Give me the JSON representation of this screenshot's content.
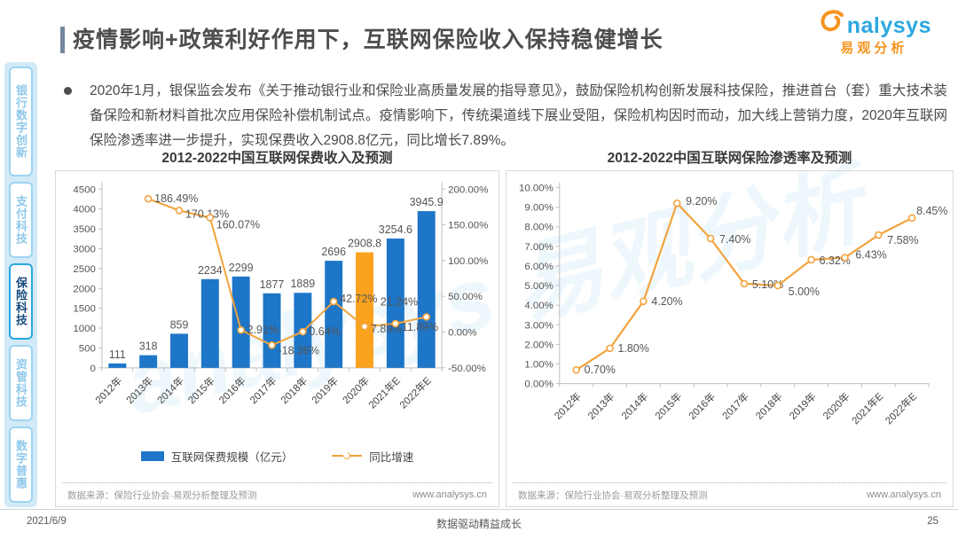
{
  "colors": {
    "blue": "#1E76C8",
    "orange": "#FAA21E",
    "line": "#F2A33C",
    "brand_blue": "#2AA8DF",
    "brand_orange": "#F7941E"
  },
  "header": {
    "title": "疫情影响+政策利好作用下，互联网保险收入保持稳健增长",
    "logo_brand": "nalysys",
    "logo_cn": "易观分析"
  },
  "bullet": "2020年1月，银保监会发布《关于推动银行业和保险业高质量发展的指导意见》，鼓励保险机构创新发展科技保险，推进首台（套）重大技术装备保险和新材料首批次应用保险补偿机制试点。疫情影响下，传统渠道线下展业受阻，保险机构因时而动，加大线上营销力度，2020年互联网保险渗透率进一步提升，实现保费收入2908.8亿元，同比增长7.89%。",
  "sidebar": {
    "items": [
      {
        "label": "银行数字创新",
        "active": false
      },
      {
        "label": "支付科技",
        "active": false
      },
      {
        "label": "保险科技",
        "active": true
      },
      {
        "label": "资管科技",
        "active": false
      },
      {
        "label": "数字普惠",
        "active": false
      }
    ]
  },
  "watermark": "analysys 易观分析",
  "charts": [
    {
      "title": "2012-2022中国互联网保费收入及预测",
      "source": "数据来源：保险行业协会·易观分析整理及预测",
      "site": "www.analysys.cn",
      "chart_data": {
        "type": "bar+line",
        "categories": [
          "2012年",
          "2013年",
          "2014年",
          "2015年",
          "2016年",
          "2017年",
          "2018年",
          "2019年",
          "2020年",
          "2021年E",
          "2022年E"
        ],
        "series": [
          {
            "name": "互联网保费规模（亿元）",
            "type": "bar",
            "values": [
              111,
              318,
              859,
              2234,
              2299,
              1877,
              1889,
              2696,
              2908.8,
              3254.6,
              3945.9
            ],
            "highlight_index": 8
          },
          {
            "name": "同比增速",
            "type": "line",
            "unit": "%",
            "values": [
              null,
              186.49,
              170.13,
              160.07,
              2.91,
              -18.36,
              0.64,
              42.72,
              7.89,
              11.89,
              21.24
            ]
          }
        ],
        "y_left": {
          "min": 0,
          "max": 4500,
          "step": 500
        },
        "y_right": {
          "min": -50,
          "max": 200,
          "step": 50,
          "format": "percent"
        },
        "grid": false,
        "legend_position": "bottom"
      }
    },
    {
      "title": "2012-2022中国互联网保险渗透率及预测",
      "source": "数据来源：保险行业协会·易观分析整理及预测",
      "site": "www.analysys.cn",
      "chart_data": {
        "type": "line",
        "categories": [
          "2012年",
          "2013年",
          "2014年",
          "2015年",
          "2016年",
          "2017年",
          "2018年",
          "2019年",
          "2020年",
          "2021年E",
          "2022年E"
        ],
        "series": [
          {
            "type": "line",
            "unit": "%",
            "values": [
              0.7,
              1.8,
              4.2,
              9.2,
              7.4,
              5.1,
              5.0,
              6.32,
              6.43,
              7.58,
              8.45
            ]
          }
        ],
        "y": {
          "min": 0,
          "max": 10,
          "step": 1,
          "format": "percent"
        },
        "grid": false
      }
    }
  ],
  "footer": {
    "date": "2021/6/9",
    "slogan": "数据驱动精益成长",
    "page": "25"
  }
}
